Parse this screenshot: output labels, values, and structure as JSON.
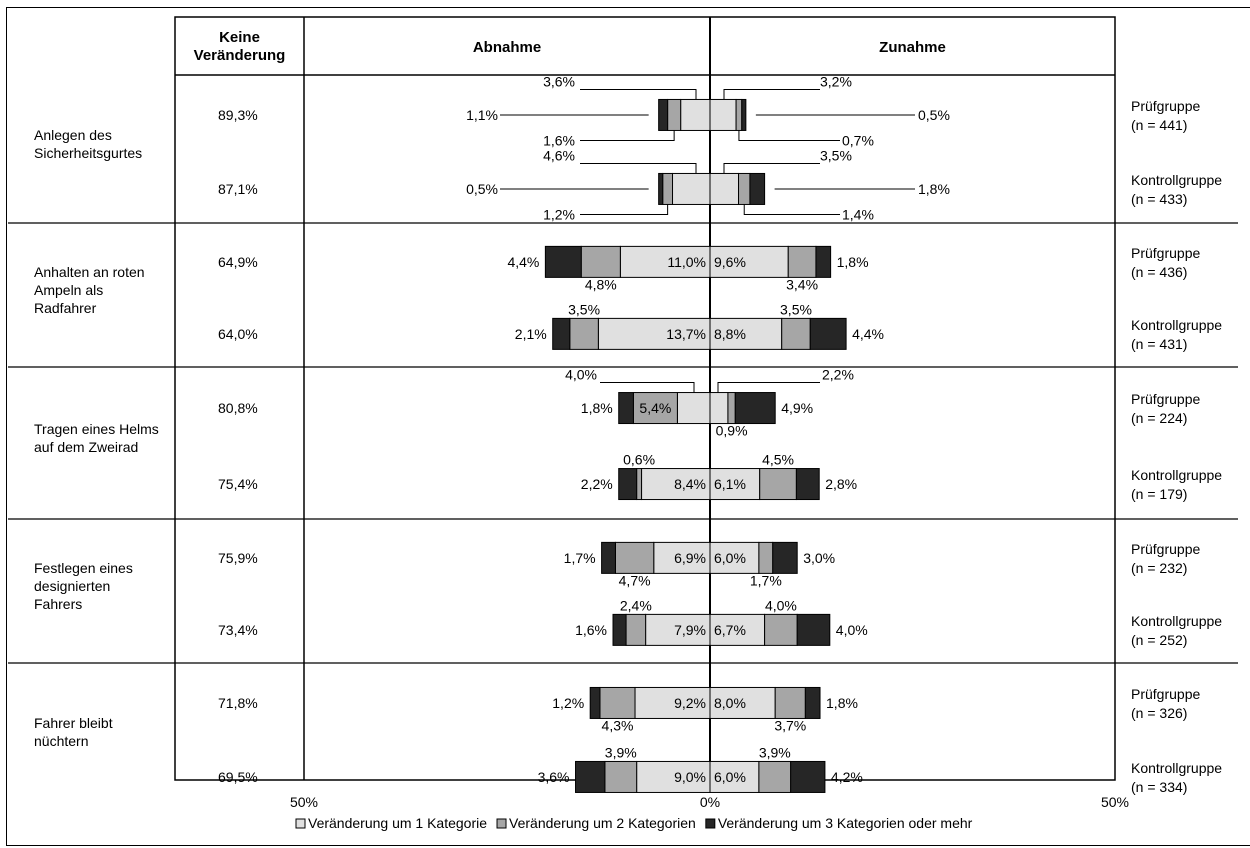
{
  "chart_data": {
    "type": "bar",
    "subtype": "diverging-stacked-bar",
    "headers": {
      "no_change": "Keine Veränderung",
      "decrease": "Abnahme",
      "increase": "Zunahme"
    },
    "x_ticks": [
      "50%",
      "0%",
      "50%"
    ],
    "xlim": [
      -50,
      50
    ],
    "legend": {
      "placement": "bottom",
      "items": [
        {
          "label": "Veränderung um 1 Kategorie",
          "color": "#e0e0e0"
        },
        {
          "label": "Veränderung um 2 Kategorien",
          "color": "#a6a6a6"
        },
        {
          "label": "Veränderung um 3 Kategorien oder mehr",
          "color": "#262626"
        }
      ]
    },
    "behaviors": [
      {
        "label": "Anlegen des Sicherheitsgurtes",
        "groups": [
          {
            "name": "Prüfgruppe",
            "n": "(n = 441)",
            "no_change": "89,3%",
            "decrease": [
              3.6,
              1.6,
              1.1
            ],
            "increase": [
              3.2,
              0.7,
              0.5
            ],
            "dec_labels": [
              "3,6%",
              "1,6%",
              "1,1%"
            ],
            "inc_labels": [
              "3,2%",
              "0,7%",
              "0,5%"
            ]
          },
          {
            "name": "Kontrollgruppe",
            "n": "(n = 433)",
            "no_change": "87,1%",
            "decrease": [
              4.6,
              1.2,
              0.5
            ],
            "increase": [
              3.5,
              1.4,
              1.8
            ],
            "dec_labels": [
              "4,6%",
              "1,2%",
              "0,5%"
            ],
            "inc_labels": [
              "3,5%",
              "1,4%",
              "1,8%"
            ]
          }
        ]
      },
      {
        "label": "Anhalten an roten Ampeln als Radfahrer",
        "groups": [
          {
            "name": "Prüfgruppe",
            "n": "(n = 436)",
            "no_change": "64,9%",
            "decrease": [
              11.0,
              4.8,
              4.4
            ],
            "increase": [
              9.6,
              3.4,
              1.8
            ],
            "dec_labels": [
              "11,0%",
              "4,8%",
              "4,4%"
            ],
            "inc_labels": [
              "9,6%",
              "3,4%",
              "1,8%"
            ]
          },
          {
            "name": "Kontrollgruppe",
            "n": "(n = 431)",
            "no_change": "64,0%",
            "decrease": [
              13.7,
              3.5,
              2.1
            ],
            "increase": [
              8.8,
              3.5,
              4.4
            ],
            "dec_labels": [
              "13,7%",
              "3,5%",
              "2,1%"
            ],
            "inc_labels": [
              "8,8%",
              "3,5%",
              "4,4%"
            ]
          }
        ]
      },
      {
        "label": "Tragen eines Helms auf dem Zweirad",
        "groups": [
          {
            "name": "Prüfgruppe",
            "n": "(n = 224)",
            "no_change": "80,8%",
            "decrease": [
              4.0,
              5.4,
              1.8
            ],
            "increase": [
              2.2,
              0.9,
              4.9
            ],
            "dec_labels": [
              "4,0%",
              "5,4%",
              "1,8%"
            ],
            "inc_labels": [
              "2,2%",
              "0,9%",
              "4,9%"
            ]
          },
          {
            "name": "Kontrollgruppe",
            "n": "(n = 179)",
            "no_change": "75,4%",
            "decrease": [
              8.4,
              0.6,
              2.2
            ],
            "increase": [
              6.1,
              4.5,
              2.8
            ],
            "dec_labels": [
              "8,4%",
              "0,6%",
              "2,2%"
            ],
            "inc_labels": [
              "6,1%",
              "4,5%",
              "2,8%"
            ]
          }
        ]
      },
      {
        "label": "Festlegen eines designierten Fahrers",
        "groups": [
          {
            "name": "Prüfgruppe",
            "n": "(n = 232)",
            "no_change": "75,9%",
            "decrease": [
              6.9,
              4.7,
              1.7
            ],
            "increase": [
              6.0,
              1.7,
              3.0
            ],
            "dec_labels": [
              "6,9%",
              "4,7%",
              "1,7%"
            ],
            "inc_labels": [
              "6,0%",
              "1,7%",
              "3,0%"
            ]
          },
          {
            "name": "Kontrollgruppe",
            "n": "(n = 252)",
            "no_change": "73,4%",
            "decrease": [
              7.9,
              2.4,
              1.6
            ],
            "increase": [
              6.7,
              4.0,
              4.0
            ],
            "dec_labels": [
              "7,9%",
              "2,4%",
              "1,6%"
            ],
            "inc_labels": [
              "6,7%",
              "4,0%",
              "4,0%"
            ]
          }
        ]
      },
      {
        "label": "Fahrer bleibt nüchtern",
        "groups": [
          {
            "name": "Prüfgruppe",
            "n": "(n = 326)",
            "no_change": "71,8%",
            "decrease": [
              9.2,
              4.3,
              1.2
            ],
            "increase": [
              8.0,
              3.7,
              1.8
            ],
            "dec_labels": [
              "9,2%",
              "4,3%",
              "1,2%"
            ],
            "inc_labels": [
              "8,0%",
              "3,7%",
              "1,8%"
            ]
          },
          {
            "name": "Kontrollgruppe",
            "n": "(n = 334)",
            "no_change": "69,5%",
            "decrease": [
              9.0,
              3.9,
              3.6
            ],
            "increase": [
              6.0,
              3.9,
              4.2
            ],
            "dec_labels": [
              "9,0%",
              "3,9%",
              "3,6%"
            ],
            "inc_labels": [
              "6,0%",
              "3,9%",
              "4,2%"
            ]
          }
        ]
      }
    ]
  }
}
